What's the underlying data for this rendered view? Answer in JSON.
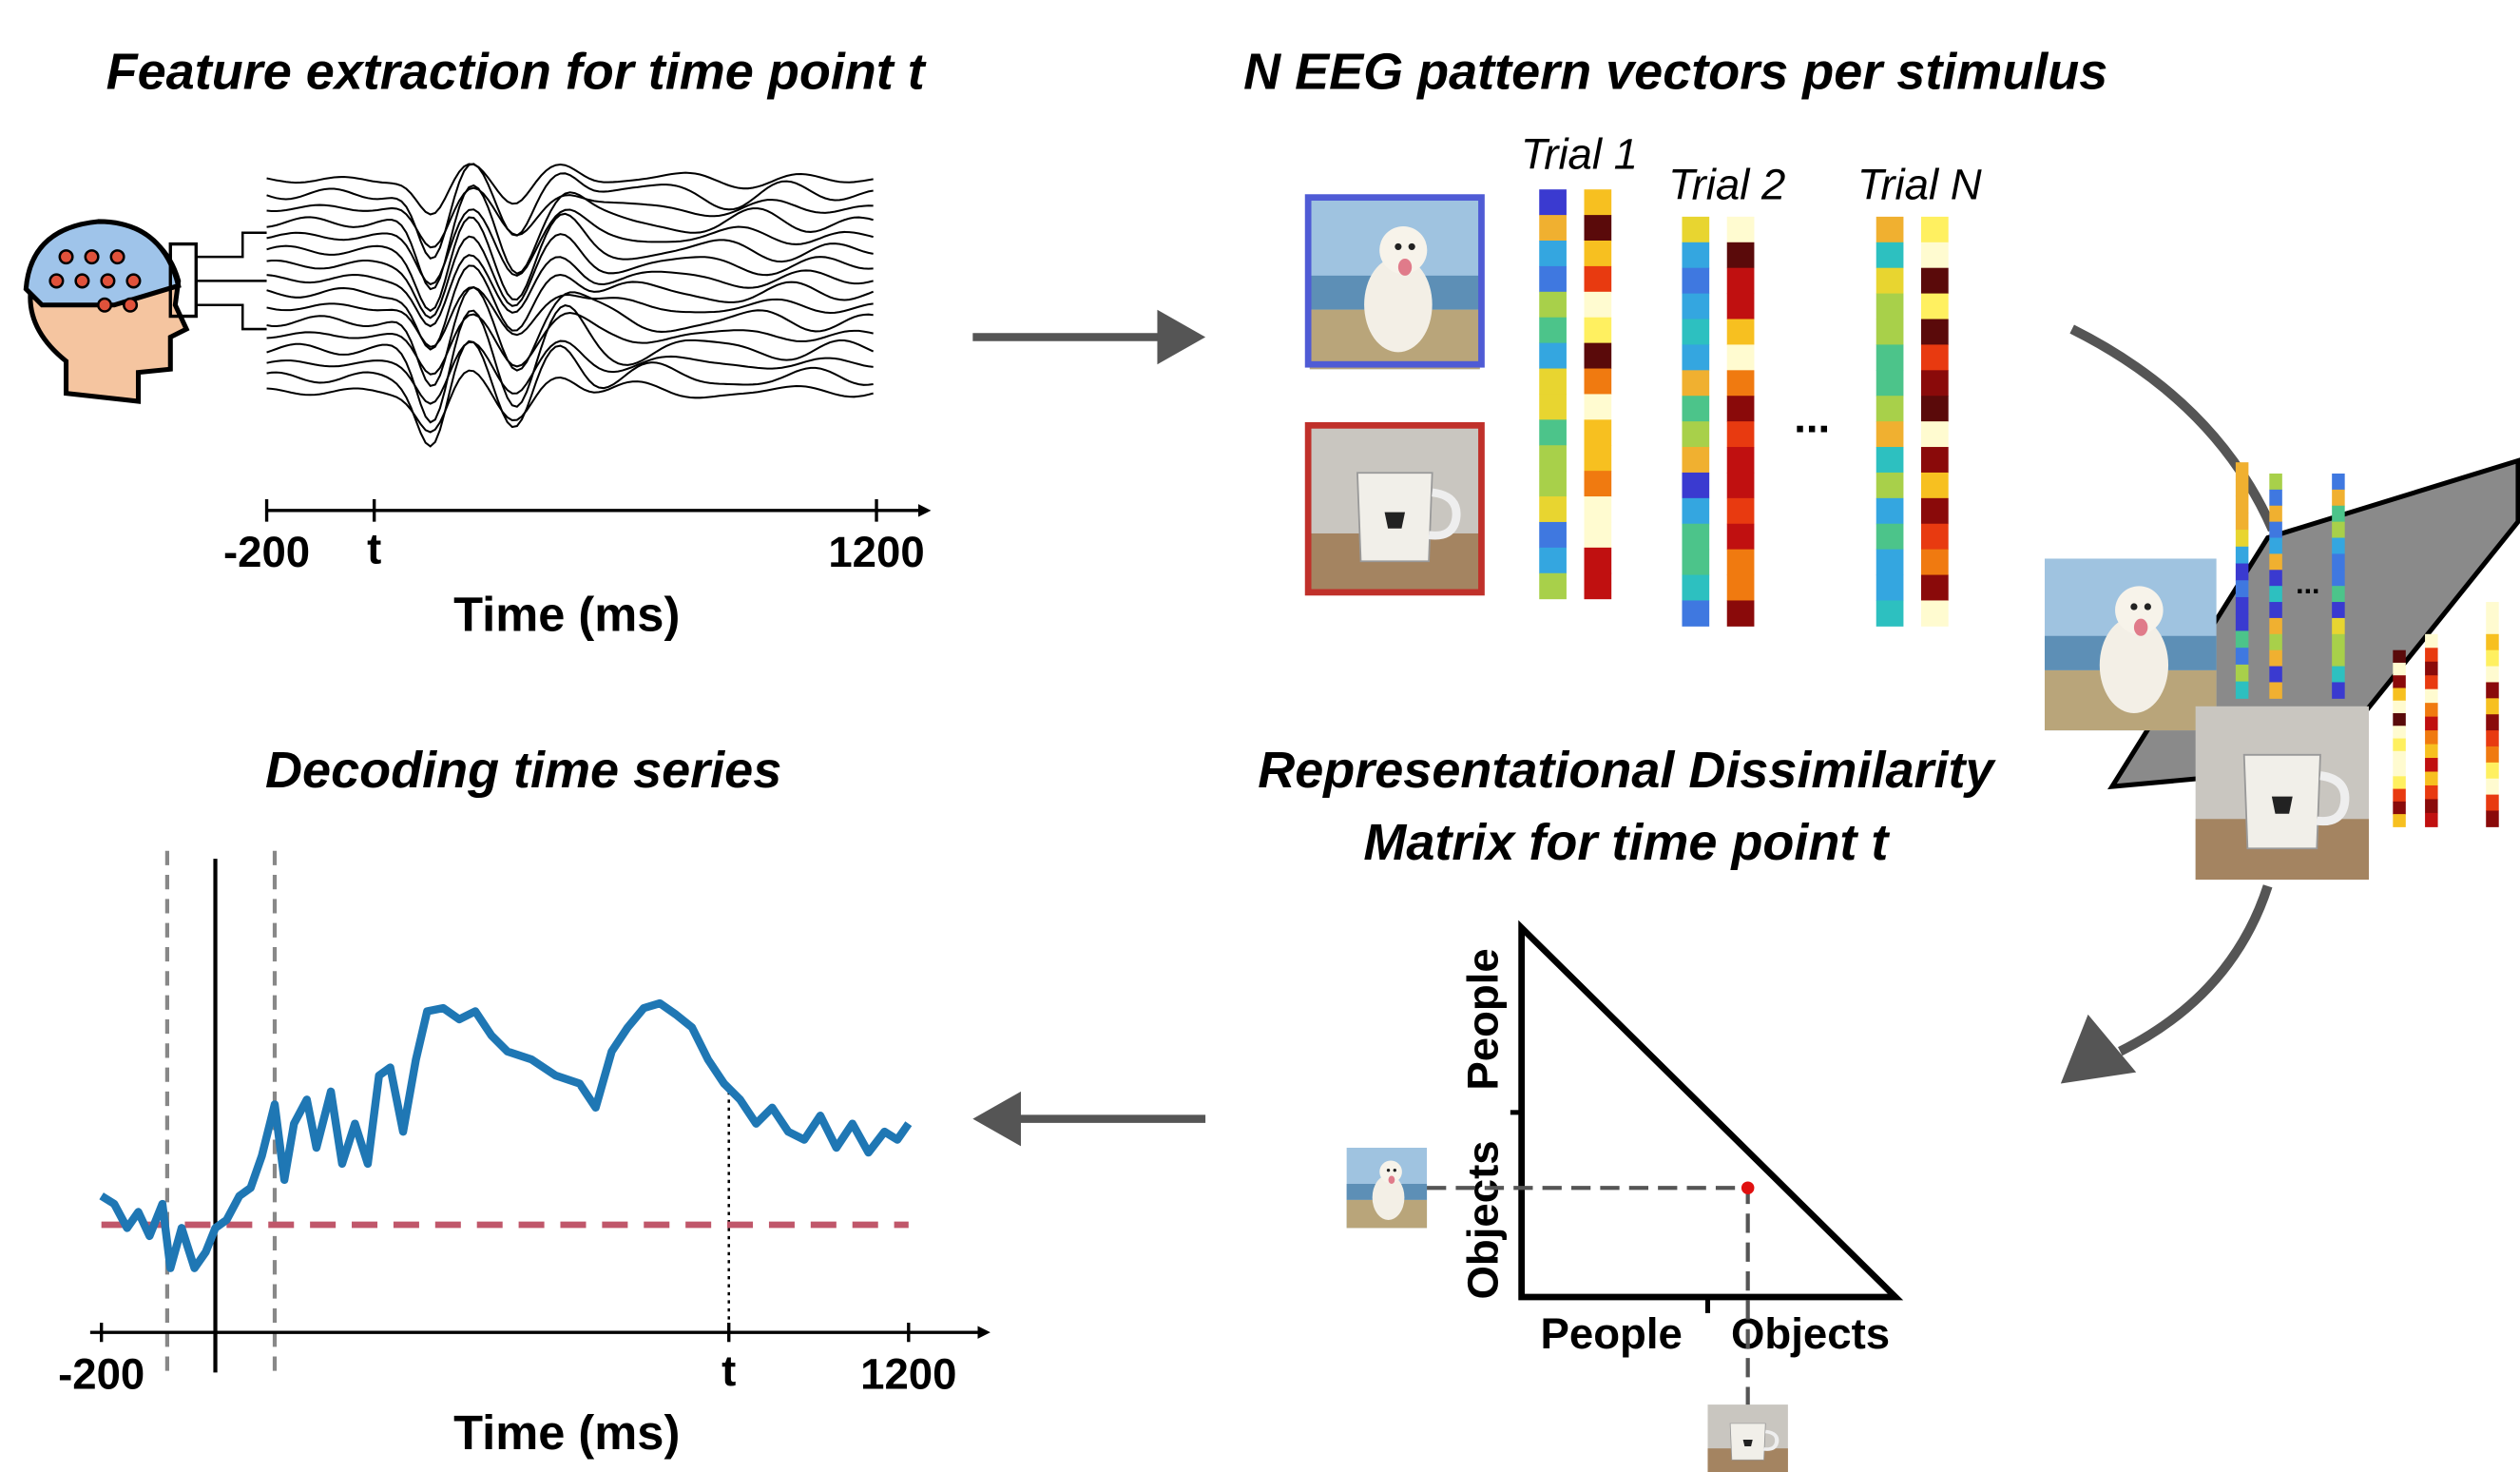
{
  "panels": {
    "feature_extraction": {
      "title": "Feature extraction for time point t",
      "axis": {
        "ticks": [
          "-200",
          "t",
          "1200"
        ],
        "label": "Time (ms)"
      }
    },
    "pattern_vectors": {
      "title": "N EEG pattern vectors per stimulus",
      "trials": [
        "Trial 1",
        "Trial 2",
        "Trial N"
      ],
      "ellipsis": "..."
    },
    "rdm": {
      "title": [
        "Representational Dissimilarity",
        "Matrix for time point t"
      ],
      "y_labels": [
        "People",
        "Objects"
      ],
      "x_labels": [
        "People",
        "Objects"
      ]
    },
    "decoding": {
      "title": "Decoding time series",
      "axis": {
        "ticks": [
          "-200",
          "t",
          "1200"
        ],
        "label": "Time (ms)"
      }
    }
  }
}
